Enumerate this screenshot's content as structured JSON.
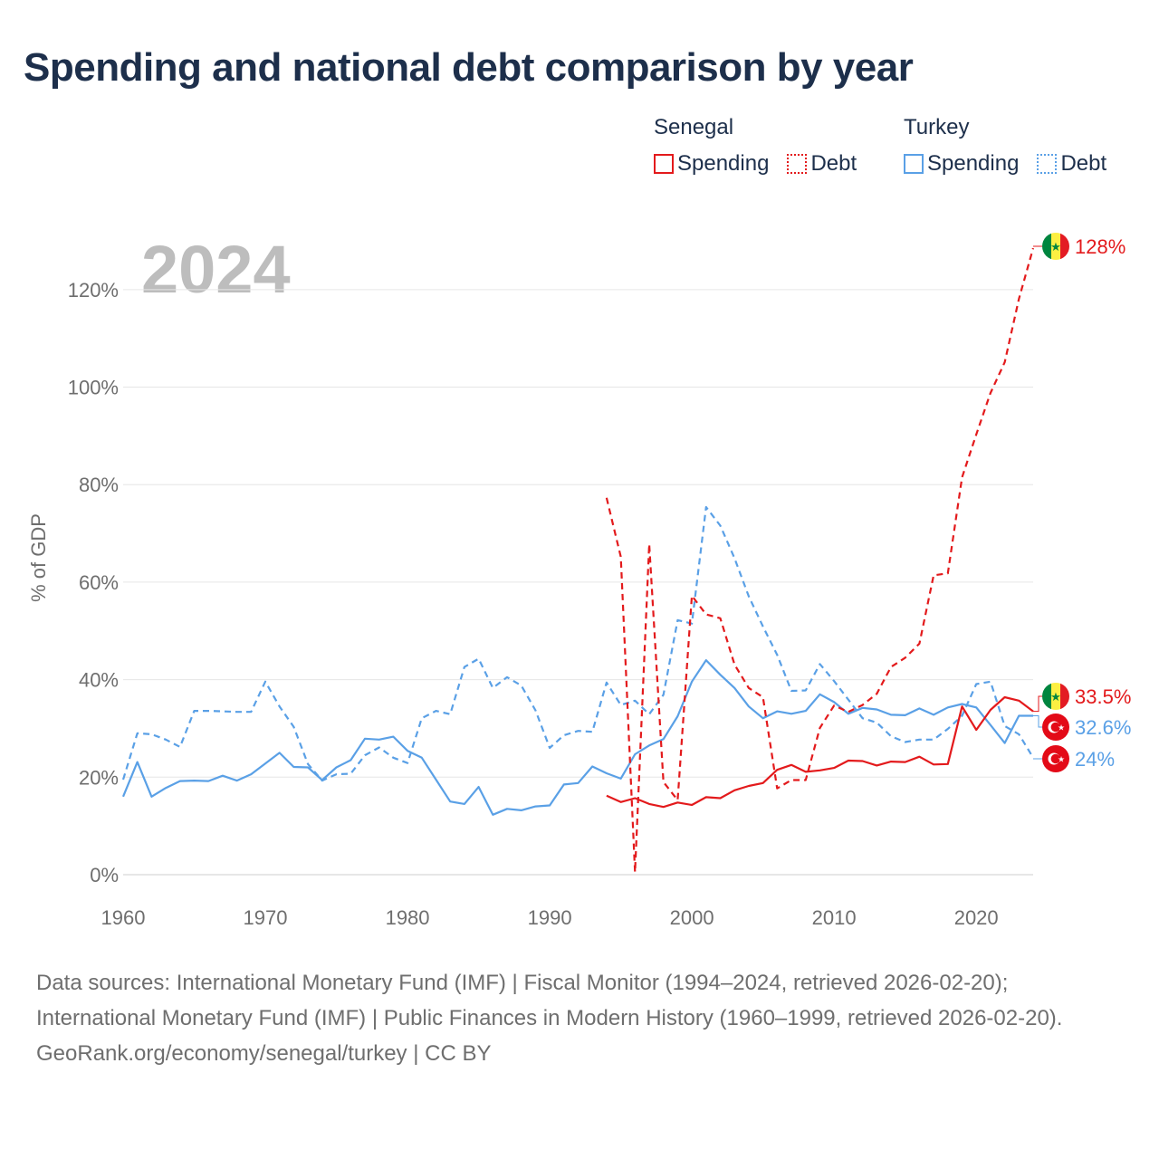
{
  "title": "Spending and national debt comparison by year",
  "legend": {
    "groups": [
      {
        "country": "Senegal",
        "spending_label": "Spending",
        "debt_label": "Debt",
        "color": "#e31a1c"
      },
      {
        "country": "Turkey",
        "spending_label": "Spending",
        "debt_label": "Debt",
        "color": "#5aa0e6"
      }
    ]
  },
  "sources": {
    "line1": "Data sources: International Monetary Fund (IMF) | Fiscal Monitor (1994–2024, retrieved 2026-02-20); International Monetary Fund (IMF) | Public Finances in Modern History (1960–1999, retrieved 2026-02-20).",
    "line2": "GeoRank.org/economy/senegal/turkey | CC BY"
  },
  "chart_data": {
    "type": "line",
    "year_label": "2024",
    "ylabel": "% of GDP",
    "xlim": [
      1960,
      2024
    ],
    "ylim": [
      0,
      130
    ],
    "x_ticks": [
      1960,
      1970,
      1980,
      1990,
      2000,
      2010,
      2020
    ],
    "y_ticks": [
      0,
      20,
      40,
      60,
      80,
      100,
      120
    ],
    "y_tick_labels": [
      "0%",
      "20%",
      "40%",
      "60%",
      "80%",
      "100%",
      "120%"
    ],
    "end_labels": [
      {
        "text": "128%",
        "value": 128.5,
        "country": "Senegal",
        "color": "#e31a1c"
      },
      {
        "text": "33.5%",
        "value": 33.5,
        "country": "Senegal",
        "color": "#e31a1c"
      },
      {
        "text": "32.6%",
        "value": 32.6,
        "country": "Turkey",
        "color": "#5aa0e6"
      },
      {
        "text": "24%",
        "value": 24,
        "country": "Turkey",
        "color": "#5aa0e6"
      }
    ],
    "series": [
      {
        "name": "Turkey Spending",
        "country": "Turkey",
        "kind": "spending",
        "color": "#5aa0e6",
        "start": 1960,
        "values": [
          16,
          23.1,
          16,
          17.8,
          19.2,
          19.3,
          19.2,
          20.3,
          19.3,
          20.6,
          22.8,
          25,
          22.1,
          22,
          19.4,
          22,
          23.5,
          27.9,
          27.7,
          28.3,
          25.4,
          24,
          19.5,
          15,
          14.5,
          18,
          12.3,
          13.5,
          13.2,
          14,
          14.2,
          18.5,
          18.8,
          22.2,
          20.8,
          19.7,
          24.7,
          26.5,
          27.8,
          32.5,
          39.6,
          44,
          41,
          38.3,
          34.5,
          32.1,
          33.5,
          33,
          33.6,
          37,
          35.4,
          33,
          34.2,
          33.9,
          32.8,
          32.7,
          34.1,
          32.8,
          34.3,
          35,
          34.3,
          30.7,
          27,
          32.6,
          32.6
        ]
      },
      {
        "name": "Turkey Debt",
        "country": "Turkey",
        "kind": "debt",
        "color": "#5aa0e6",
        "start": 1960,
        "values": [
          19.5,
          29,
          28.8,
          27.7,
          26.2,
          33.6,
          33.6,
          33.5,
          33.4,
          33.4,
          39.6,
          34.5,
          30.3,
          22.7,
          19.3,
          20.6,
          20.7,
          24.5,
          26.1,
          24,
          22.9,
          32.1,
          33.6,
          32.9,
          42.6,
          44.3,
          38.3,
          40.5,
          38.8,
          33.7,
          26,
          28.6,
          29.5,
          29.3,
          39.4,
          34.8,
          35.7,
          32.9,
          36.9,
          52.2,
          51.5,
          75.4,
          71.6,
          64.9,
          57.1,
          50.9,
          45.1,
          37.7,
          37.8,
          43.2,
          39.7,
          35.9,
          32.1,
          31.2,
          28.4,
          27.2,
          27.7,
          27.7,
          29.9,
          32.6,
          39.1,
          39.6,
          30.5,
          28.8,
          24
        ]
      },
      {
        "name": "Senegal Spending",
        "country": "Senegal",
        "kind": "spending",
        "color": "#e31a1c",
        "start": 1994,
        "values": [
          16.2,
          14.9,
          15.7,
          14.5,
          13.9,
          14.8,
          14.3,
          15.9,
          15.7,
          17.3,
          18.2,
          18.8,
          21.5,
          22.5,
          21.1,
          21.4,
          21.9,
          23.4,
          23.3,
          22.4,
          23.2,
          23.1,
          24.2,
          22.6,
          22.7,
          34.5,
          29.7,
          33.8,
          36.4,
          35.7,
          33.5
        ]
      },
      {
        "name": "Senegal Debt",
        "country": "Senegal",
        "kind": "debt",
        "color": "#e31a1c",
        "start": 1994,
        "values": [
          77.3,
          65.2,
          0.5,
          67.8,
          19,
          15.3,
          57.2,
          53.4,
          52.6,
          43.1,
          38.3,
          36.4,
          17.7,
          19.4,
          19.4,
          30.1,
          34.7,
          33.4,
          34.8,
          37.1,
          42.6,
          44.5,
          47.4,
          61.4,
          61.8,
          81.5,
          90.3,
          98.8,
          105.1,
          118.1,
          128.5
        ]
      }
    ]
  }
}
